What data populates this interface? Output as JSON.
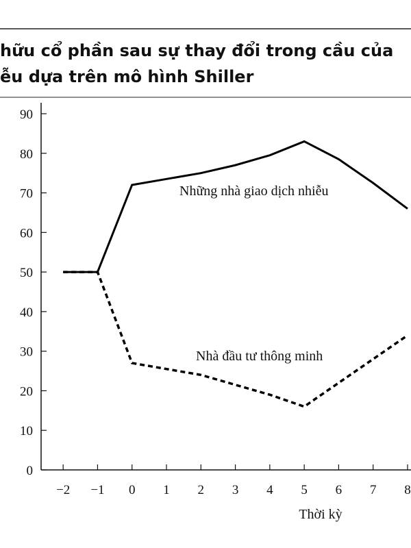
{
  "chart_data": {
    "type": "line",
    "title": "hữu cổ phần sau sự thay đổi trong cầu của",
    "subtitle": "ễu dựa trên mô hình Shiller",
    "x_label": "Thời kỳ",
    "x": [
      -2,
      -1,
      0,
      1,
      2,
      3,
      4,
      5,
      6,
      7,
      8
    ],
    "series": [
      {
        "name": "Những nhà giao dịch nhiễu",
        "color": "#000000",
        "dash": false,
        "values": [
          50,
          50,
          72,
          73.5,
          75,
          77,
          79.5,
          83,
          78.5,
          72.5,
          66
        ]
      },
      {
        "name": "Nhà đầu tư thông minh",
        "color": "#000000",
        "dash": true,
        "values": [
          50,
          50,
          27,
          25.5,
          24,
          21.5,
          19,
          16,
          22,
          28,
          34
        ]
      }
    ],
    "xlim": [
      -2.64,
      8.1
    ],
    "xticks": [
      {
        "value": -2,
        "label": "−2"
      },
      {
        "value": -1,
        "label": "−1"
      },
      0,
      1,
      2,
      3,
      4,
      5,
      6,
      7,
      8
    ],
    "ylim": [
      0,
      90
    ],
    "yticks": [
      0,
      10,
      20,
      30,
      40,
      50,
      60,
      70,
      80,
      90
    ],
    "grid": false
  }
}
